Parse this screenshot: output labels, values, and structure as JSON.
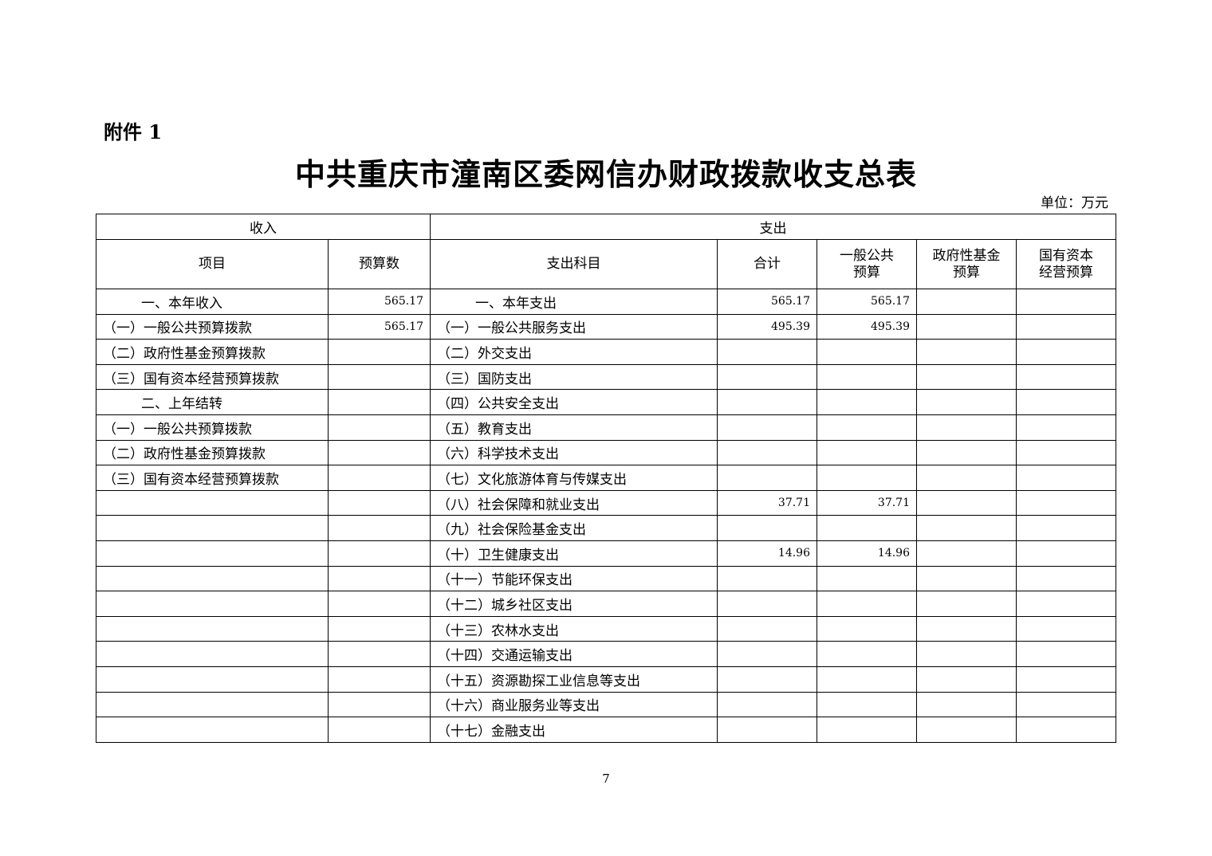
{
  "attachment_label": "附件 1",
  "title": "中共重庆市潼南区委网信办财政拨款收支总表",
  "unit": "单位：万元",
  "header": {
    "income": "收入",
    "expense": "支出",
    "columns": [
      "项目",
      "预算数",
      "支出科目",
      "合计",
      "一般公共\n预算",
      "政府性基金\n预算",
      "国有资本\n经营预算"
    ]
  },
  "rows": [
    {
      "item": "一、本年收入",
      "budget": "565.17",
      "subject": "一、本年支出",
      "total": "565.17",
      "general": "565.17",
      "fund": "",
      "state": ""
    },
    {
      "item": "（一）一般公共预算拨款",
      "budget": "565.17",
      "subject": "（一）一般公共服务支出",
      "total": "495.39",
      "general": "495.39",
      "fund": "",
      "state": ""
    },
    {
      "item": "（二）政府性基金预算拨款",
      "budget": "",
      "subject": "（二）外交支出",
      "total": "",
      "general": "",
      "fund": "",
      "state": ""
    },
    {
      "item": "（三）国有资本经营预算拨款",
      "budget": "",
      "subject": "（三）国防支出",
      "total": "",
      "general": "",
      "fund": "",
      "state": ""
    },
    {
      "item": "二、上年结转",
      "budget": "",
      "subject": "（四）公共安全支出",
      "total": "",
      "general": "",
      "fund": "",
      "state": ""
    },
    {
      "item": "（一）一般公共预算拨款",
      "budget": "",
      "subject": "（五）教育支出",
      "total": "",
      "general": "",
      "fund": "",
      "state": ""
    },
    {
      "item": "（二）政府性基金预算拨款",
      "budget": "",
      "subject": "（六）科学技术支出",
      "total": "",
      "general": "",
      "fund": "",
      "state": ""
    },
    {
      "item": "（三）国有资本经营预算拨款",
      "budget": "",
      "subject": "（七）文化旅游体育与传媒支出",
      "total": "",
      "general": "",
      "fund": "",
      "state": ""
    },
    {
      "item": "",
      "budget": "",
      "subject": "（八）社会保障和就业支出",
      "total": "37.71",
      "general": "37.71",
      "fund": "",
      "state": ""
    },
    {
      "item": "",
      "budget": "",
      "subject": "（九）社会保险基金支出",
      "total": "",
      "general": "",
      "fund": "",
      "state": ""
    },
    {
      "item": "",
      "budget": "",
      "subject": "（十）卫生健康支出",
      "total": "14.96",
      "general": "14.96",
      "fund": "",
      "state": ""
    },
    {
      "item": "",
      "budget": "",
      "subject": "（十一）节能环保支出",
      "total": "",
      "general": "",
      "fund": "",
      "state": ""
    },
    {
      "item": "",
      "budget": "",
      "subject": "（十二）城乡社区支出",
      "total": "",
      "general": "",
      "fund": "",
      "state": ""
    },
    {
      "item": "",
      "budget": "",
      "subject": "（十三）农林水支出",
      "total": "",
      "general": "",
      "fund": "",
      "state": ""
    },
    {
      "item": "",
      "budget": "",
      "subject": "（十四）交通运输支出",
      "total": "",
      "general": "",
      "fund": "",
      "state": ""
    },
    {
      "item": "",
      "budget": "",
      "subject": "（十五）资源勘探工业信息等支出",
      "total": "",
      "general": "",
      "fund": "",
      "state": ""
    },
    {
      "item": "",
      "budget": "",
      "subject": "（十六）商业服务业等支出",
      "total": "",
      "general": "",
      "fund": "",
      "state": ""
    },
    {
      "item": "",
      "budget": "",
      "subject": "（十七）金融支出",
      "total": "",
      "general": "",
      "fund": "",
      "state": ""
    }
  ],
  "page_number": "7"
}
